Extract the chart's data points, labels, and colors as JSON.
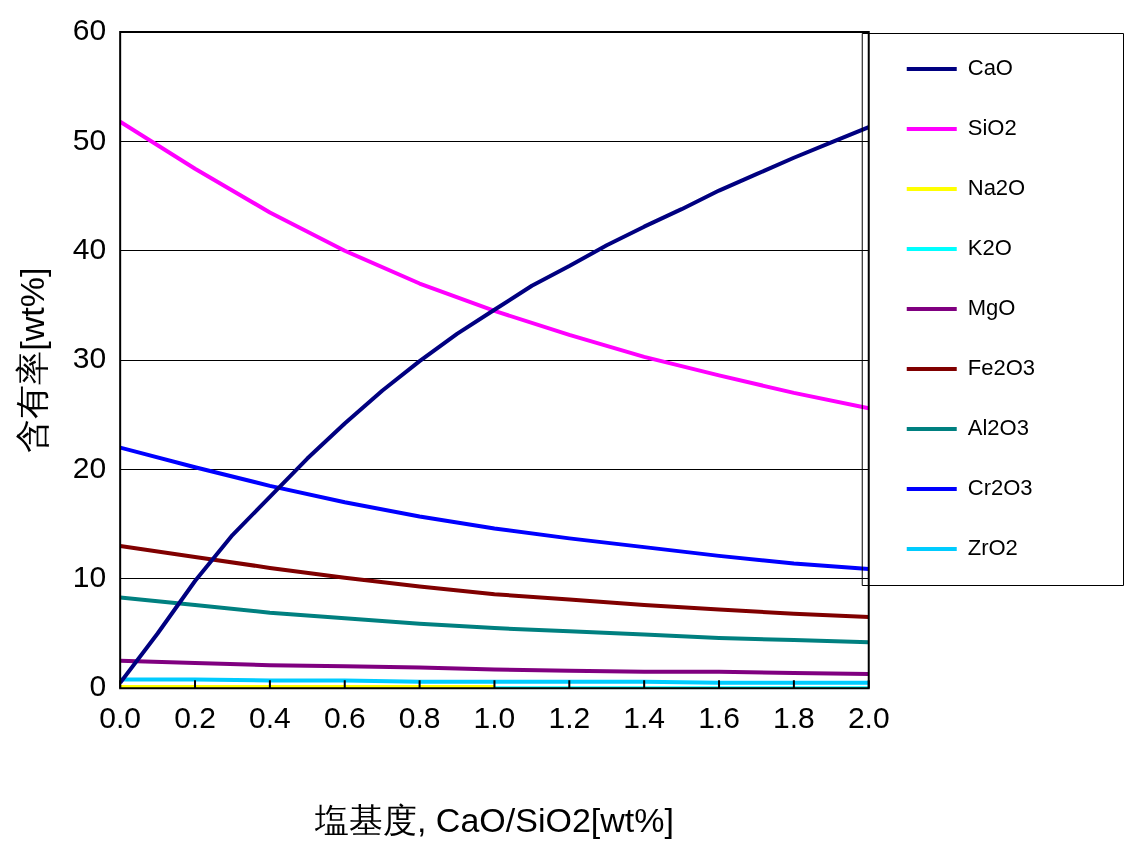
{
  "chart_data": {
    "type": "line",
    "xlabel": "塩基度, CaO/SiO2[wt%]",
    "ylabel": "含有率[wt%]",
    "x": [
      0,
      0.2,
      0.4,
      0.6,
      0.8,
      1.0,
      1.2,
      1.4,
      1.6,
      1.8,
      2.0
    ],
    "xlim": [
      0,
      2
    ],
    "xticks": [
      {
        "value": 0,
        "label": "0.0"
      },
      {
        "value": 0.2,
        "label": "0.2"
      },
      {
        "value": 0.4,
        "label": "0.4"
      },
      {
        "value": 0.6,
        "label": "0.6"
      },
      {
        "value": 0.8,
        "label": "0.8"
      },
      {
        "value": 1,
        "label": "1.0"
      },
      {
        "value": 1.2,
        "label": "1.2"
      },
      {
        "value": 1.4,
        "label": "1.4"
      },
      {
        "value": 1.6,
        "label": "1.6"
      },
      {
        "value": 1.8,
        "label": "1.8"
      },
      {
        "value": 2,
        "label": "2.0"
      }
    ],
    "ylim": [
      0,
      60
    ],
    "yticks": [
      0,
      10,
      20,
      30,
      40,
      50,
      60
    ],
    "grid": "y",
    "legend": "right",
    "marker": "none",
    "line_style": "solid",
    "series": [
      {
        "name": "CaO",
        "color": "#000080",
        "x": [
          0,
          0.1,
          0.2,
          0.3,
          0.4,
          0.5,
          0.6,
          0.7,
          0.8,
          0.9,
          1.0,
          1.1,
          1.2,
          1.3,
          1.4,
          1.5,
          1.6,
          1.7,
          1.8,
          1.9,
          2.0
        ],
        "values": [
          0.5,
          5,
          9.8,
          14,
          17.5,
          21,
          24.2,
          27.2,
          29.9,
          32.4,
          34.6,
          36.8,
          38.6,
          40.5,
          42.2,
          43.8,
          45.5,
          47,
          48.5,
          49.9,
          51.3
        ]
      },
      {
        "name": "SiO2",
        "color": "#ff00ff",
        "values": [
          51.8,
          47.5,
          43.5,
          40,
          37,
          34.5,
          32.3,
          30.3,
          28.6,
          27,
          25.6
        ]
      },
      {
        "name": "Na2O",
        "color": "#ffff00",
        "values": [
          0.1,
          0.1,
          0.1,
          0.1,
          0.1,
          0.1,
          null,
          null,
          null,
          null,
          null
        ]
      },
      {
        "name": "K2O",
        "color": "#00ffff",
        "values": [
          null,
          null,
          null,
          null,
          null,
          0,
          0,
          0,
          0,
          0,
          0
        ]
      },
      {
        "name": "MgO",
        "color": "#800080",
        "values": [
          2.5,
          2.3,
          2.1,
          2.0,
          1.9,
          1.7,
          1.6,
          1.5,
          1.5,
          1.4,
          1.3
        ]
      },
      {
        "name": "Fe2O3",
        "color": "#800000",
        "values": [
          13,
          12,
          11,
          10.1,
          9.3,
          8.6,
          8.1,
          7.6,
          7.2,
          6.8,
          6.5
        ]
      },
      {
        "name": "Al2O3",
        "color": "#008080",
        "values": [
          8.3,
          7.6,
          6.9,
          6.4,
          5.9,
          5.5,
          5.2,
          4.9,
          4.6,
          4.4,
          4.2
        ]
      },
      {
        "name": "Cr2O3",
        "color": "#0000ff",
        "values": [
          22,
          20.2,
          18.5,
          17,
          15.7,
          14.6,
          13.7,
          12.9,
          12.1,
          11.4,
          10.9
        ]
      },
      {
        "name": "ZrO2",
        "color": "#00ccff",
        "values": [
          0.8,
          0.8,
          0.7,
          0.7,
          0.6,
          0.6,
          0.6,
          0.6,
          0.5,
          0.5,
          0.5
        ]
      }
    ]
  }
}
